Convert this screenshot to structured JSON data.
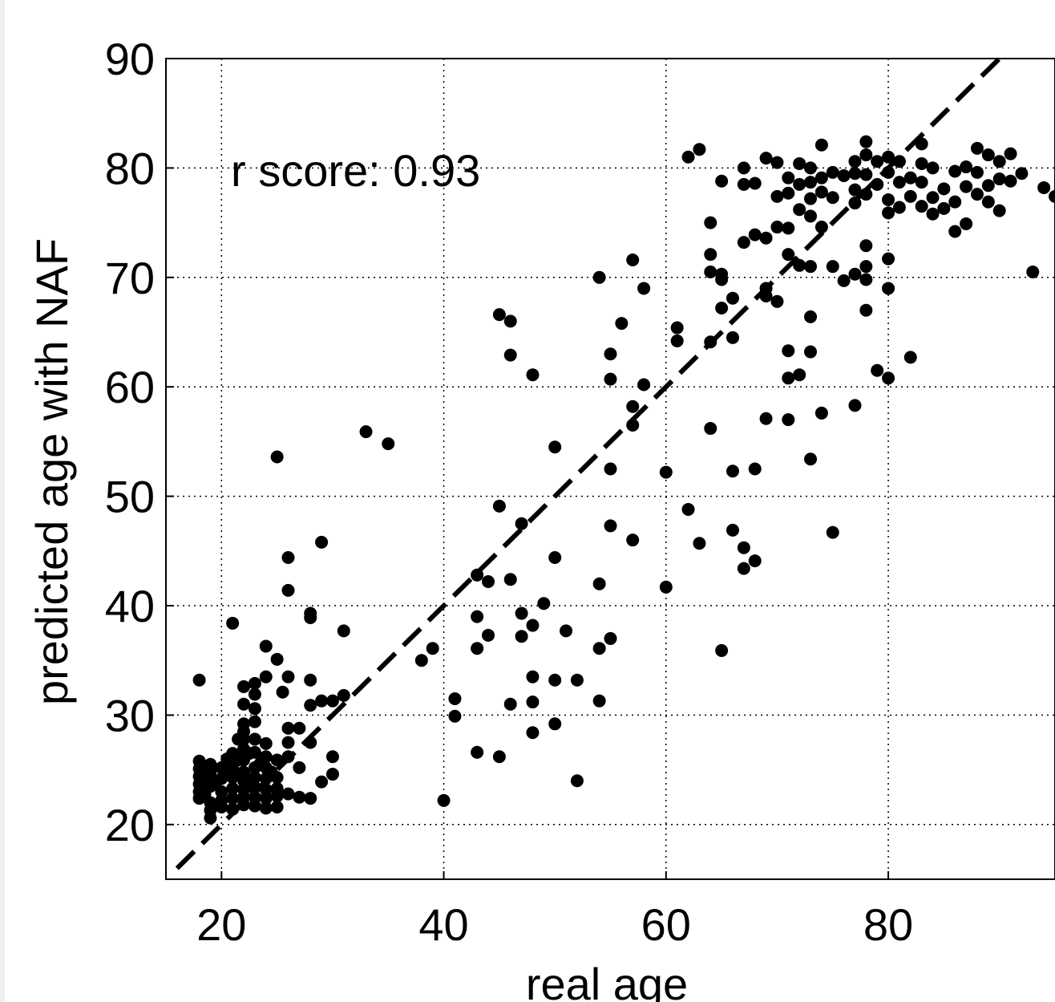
{
  "chart_data": {
    "type": "scatter",
    "xlabel": "real age",
    "ylabel": "predicted age with NAF",
    "annotation": "r score: 0.93",
    "xlim": [
      15,
      95
    ],
    "ylim": [
      15,
      90
    ],
    "xticks": [
      20,
      40,
      60,
      80
    ],
    "yticks": [
      20,
      30,
      40,
      50,
      60,
      70,
      80,
      90
    ],
    "grid": true,
    "reference_line": {
      "style": "dashed",
      "from": [
        16,
        16
      ],
      "to": [
        90,
        90
      ]
    },
    "colors": {
      "points": "#000000",
      "grid": "#000000",
      "frame": "#000000"
    },
    "series": [
      {
        "points": [
          [
            18,
            33.2
          ],
          [
            18,
            25.8
          ],
          [
            18,
            25.1
          ],
          [
            18,
            24.4
          ],
          [
            18,
            23.7
          ],
          [
            18,
            23.0
          ],
          [
            18,
            22.4
          ],
          [
            18.5,
            24.0
          ],
          [
            18.5,
            22.8
          ],
          [
            19,
            25.5
          ],
          [
            19,
            24.8
          ],
          [
            19,
            23.5
          ],
          [
            19,
            22.0
          ],
          [
            19,
            21.3
          ],
          [
            19,
            20.6
          ],
          [
            19.5,
            23.9
          ],
          [
            20,
            25.2
          ],
          [
            20,
            24.2
          ],
          [
            20,
            23.0
          ],
          [
            20,
            22.2
          ],
          [
            20,
            21.6
          ],
          [
            20.5,
            26.0
          ],
          [
            20.5,
            24.6
          ],
          [
            21,
            38.4
          ],
          [
            21,
            26.5
          ],
          [
            21,
            25.1
          ],
          [
            21,
            24.3
          ],
          [
            21,
            23.3
          ],
          [
            21,
            22.4
          ],
          [
            21,
            21.4
          ],
          [
            21.5,
            27.8
          ],
          [
            21.5,
            25.9
          ],
          [
            22,
            32.6
          ],
          [
            22,
            31.0
          ],
          [
            22,
            29.2
          ],
          [
            22,
            28.5
          ],
          [
            22,
            27.8
          ],
          [
            22,
            26.9
          ],
          [
            22,
            25.9
          ],
          [
            22,
            24.8
          ],
          [
            22,
            24.0
          ],
          [
            22,
            23.2
          ],
          [
            22,
            22.5
          ],
          [
            22,
            21.8
          ],
          [
            22.5,
            26.5
          ],
          [
            22.5,
            23.5
          ],
          [
            23,
            32.9
          ],
          [
            23,
            31.9
          ],
          [
            23,
            30.6
          ],
          [
            23,
            29.4
          ],
          [
            23,
            27.8
          ],
          [
            23,
            26.6
          ],
          [
            23,
            25.2
          ],
          [
            23,
            24.3
          ],
          [
            23,
            23.4
          ],
          [
            23,
            22.5
          ],
          [
            23,
            21.7
          ],
          [
            23.5,
            25.6
          ],
          [
            24,
            36.3
          ],
          [
            24,
            33.5
          ],
          [
            24,
            27.4
          ],
          [
            24,
            26.2
          ],
          [
            24,
            25.2
          ],
          [
            24,
            24.2
          ],
          [
            24,
            23.2
          ],
          [
            24,
            22.4
          ],
          [
            24,
            21.5
          ],
          [
            24.5,
            24.8
          ],
          [
            25,
            53.6
          ],
          [
            25,
            35.1
          ],
          [
            25,
            25.9
          ],
          [
            25,
            24.3
          ],
          [
            25,
            23.3
          ],
          [
            25,
            22.6
          ],
          [
            25,
            21.6
          ],
          [
            25.5,
            32.1
          ],
          [
            26,
            44.4
          ],
          [
            26,
            41.4
          ],
          [
            26,
            33.5
          ],
          [
            26,
            28.8
          ],
          [
            26,
            27.5
          ],
          [
            26,
            26.2
          ],
          [
            26,
            22.8
          ],
          [
            27,
            28.8
          ],
          [
            27,
            25.2
          ],
          [
            27,
            22.5
          ],
          [
            28,
            39.3
          ],
          [
            28,
            38.9
          ],
          [
            28,
            33.2
          ],
          [
            28,
            30.9
          ],
          [
            28,
            27.5
          ],
          [
            28,
            22.4
          ],
          [
            29,
            45.8
          ],
          [
            29,
            31.3
          ],
          [
            29,
            23.9
          ],
          [
            30,
            31.3
          ],
          [
            30,
            26.2
          ],
          [
            30,
            24.6
          ],
          [
            31,
            37.7
          ],
          [
            31,
            31.8
          ],
          [
            33,
            55.9
          ],
          [
            35,
            54.8
          ],
          [
            38,
            35.0
          ],
          [
            39,
            36.1
          ],
          [
            40,
            22.2
          ],
          [
            41,
            31.5
          ],
          [
            41,
            29.9
          ],
          [
            43,
            42.8
          ],
          [
            43,
            39.0
          ],
          [
            43,
            36.1
          ],
          [
            43,
            26.6
          ],
          [
            44,
            42.2
          ],
          [
            44,
            37.3
          ],
          [
            45,
            66.6
          ],
          [
            45,
            49.1
          ],
          [
            45,
            26.2
          ],
          [
            46,
            66.0
          ],
          [
            46,
            62.9
          ],
          [
            46,
            42.4
          ],
          [
            46,
            31.0
          ],
          [
            47,
            47.5
          ],
          [
            47,
            39.3
          ],
          [
            47,
            37.2
          ],
          [
            48,
            61.1
          ],
          [
            48,
            38.2
          ],
          [
            48,
            33.5
          ],
          [
            48,
            31.2
          ],
          [
            48,
            28.4
          ],
          [
            49,
            40.2
          ],
          [
            50,
            54.5
          ],
          [
            50,
            44.4
          ],
          [
            50,
            33.2
          ],
          [
            50,
            29.2
          ],
          [
            51,
            37.7
          ],
          [
            52,
            33.2
          ],
          [
            52,
            24.0
          ],
          [
            54,
            70.0
          ],
          [
            54,
            42.0
          ],
          [
            54,
            36.1
          ],
          [
            54,
            31.3
          ],
          [
            55,
            63.0
          ],
          [
            55,
            60.7
          ],
          [
            55,
            52.5
          ],
          [
            55,
            47.3
          ],
          [
            55,
            37.0
          ],
          [
            56,
            65.8
          ],
          [
            57,
            58.2
          ],
          [
            57,
            56.5
          ],
          [
            57,
            46.0
          ],
          [
            57,
            71.6
          ],
          [
            58,
            69.0
          ],
          [
            58,
            60.2
          ],
          [
            60,
            52.2
          ],
          [
            60,
            41.7
          ],
          [
            61,
            65.4
          ],
          [
            61,
            64.2
          ],
          [
            62,
            81.0
          ],
          [
            62,
            48.8
          ],
          [
            63,
            81.7
          ],
          [
            63,
            45.7
          ],
          [
            64,
            75.0
          ],
          [
            64,
            72.1
          ],
          [
            64,
            70.5
          ],
          [
            64,
            64.1
          ],
          [
            64,
            56.2
          ],
          [
            65,
            78.8
          ],
          [
            65,
            70.3
          ],
          [
            65,
            69.8
          ],
          [
            65,
            67.2
          ],
          [
            65,
            35.9
          ],
          [
            66,
            68.1
          ],
          [
            66,
            64.5
          ],
          [
            66,
            52.3
          ],
          [
            66,
            46.9
          ],
          [
            67,
            80.0
          ],
          [
            67,
            78.5
          ],
          [
            67,
            73.2
          ],
          [
            67,
            45.3
          ],
          [
            67,
            43.4
          ],
          [
            68,
            78.6
          ],
          [
            68,
            73.9
          ],
          [
            68,
            52.5
          ],
          [
            68,
            44.1
          ],
          [
            69,
            80.9
          ],
          [
            69,
            73.6
          ],
          [
            69,
            69.0
          ],
          [
            69,
            68.3
          ],
          [
            69,
            57.1
          ],
          [
            70,
            80.5
          ],
          [
            70,
            77.4
          ],
          [
            70,
            74.6
          ],
          [
            70,
            67.8
          ],
          [
            71,
            79.1
          ],
          [
            71,
            77.7
          ],
          [
            71,
            74.5
          ],
          [
            71,
            72.1
          ],
          [
            71,
            63.3
          ],
          [
            71,
            60.8
          ],
          [
            71,
            57.0
          ],
          [
            72,
            80.4
          ],
          [
            72,
            78.5
          ],
          [
            72,
            76.2
          ],
          [
            72,
            71.1
          ],
          [
            72,
            61.1
          ],
          [
            73,
            80.0
          ],
          [
            73,
            78.7
          ],
          [
            73,
            77.2
          ],
          [
            73,
            75.6
          ],
          [
            73,
            71.0
          ],
          [
            73,
            66.4
          ],
          [
            73,
            63.2
          ],
          [
            73,
            53.4
          ],
          [
            74,
            82.1
          ],
          [
            74,
            79.1
          ],
          [
            74,
            77.8
          ],
          [
            74,
            74.6
          ],
          [
            74,
            57.6
          ],
          [
            75,
            79.6
          ],
          [
            75,
            77.3
          ],
          [
            75,
            71.0
          ],
          [
            75,
            46.7
          ],
          [
            76,
            79.3
          ],
          [
            76,
            69.7
          ],
          [
            77,
            80.6
          ],
          [
            77,
            79.5
          ],
          [
            77,
            78.0
          ],
          [
            77,
            76.8
          ],
          [
            77,
            70.3
          ],
          [
            77,
            58.3
          ],
          [
            78,
            82.4
          ],
          [
            78,
            81.2
          ],
          [
            78,
            79.4
          ],
          [
            78,
            77.6
          ],
          [
            78,
            72.9
          ],
          [
            78,
            71.0
          ],
          [
            78,
            69.8
          ],
          [
            78,
            67.0
          ],
          [
            79,
            80.6
          ],
          [
            79,
            78.5
          ],
          [
            79,
            61.5
          ],
          [
            80,
            81.0
          ],
          [
            80,
            79.6
          ],
          [
            80,
            77.1
          ],
          [
            80,
            75.9
          ],
          [
            80,
            71.7
          ],
          [
            80,
            69.0
          ],
          [
            80,
            60.8
          ],
          [
            81,
            80.6
          ],
          [
            81,
            78.7
          ],
          [
            81,
            76.4
          ],
          [
            82,
            79.1
          ],
          [
            82,
            77.4
          ],
          [
            82,
            62.7
          ],
          [
            83,
            82.2
          ],
          [
            83,
            80.4
          ],
          [
            83,
            78.7
          ],
          [
            83,
            76.5
          ],
          [
            84,
            80.0
          ],
          [
            84,
            77.3
          ],
          [
            84,
            75.8
          ],
          [
            85,
            78.1
          ],
          [
            85,
            76.3
          ],
          [
            86,
            79.7
          ],
          [
            86,
            76.9
          ],
          [
            86,
            74.2
          ],
          [
            87,
            80.1
          ],
          [
            87,
            78.3
          ],
          [
            87,
            74.9
          ],
          [
            88,
            81.8
          ],
          [
            88,
            79.6
          ],
          [
            88,
            77.6
          ],
          [
            89,
            81.2
          ],
          [
            89,
            78.4
          ],
          [
            89,
            76.9
          ],
          [
            90,
            80.6
          ],
          [
            90,
            79.0
          ],
          [
            90,
            76.1
          ],
          [
            91,
            81.3
          ],
          [
            91,
            78.8
          ],
          [
            92,
            79.5
          ],
          [
            93,
            70.5
          ],
          [
            94,
            78.2
          ],
          [
            95,
            77.4
          ]
        ]
      }
    ]
  }
}
